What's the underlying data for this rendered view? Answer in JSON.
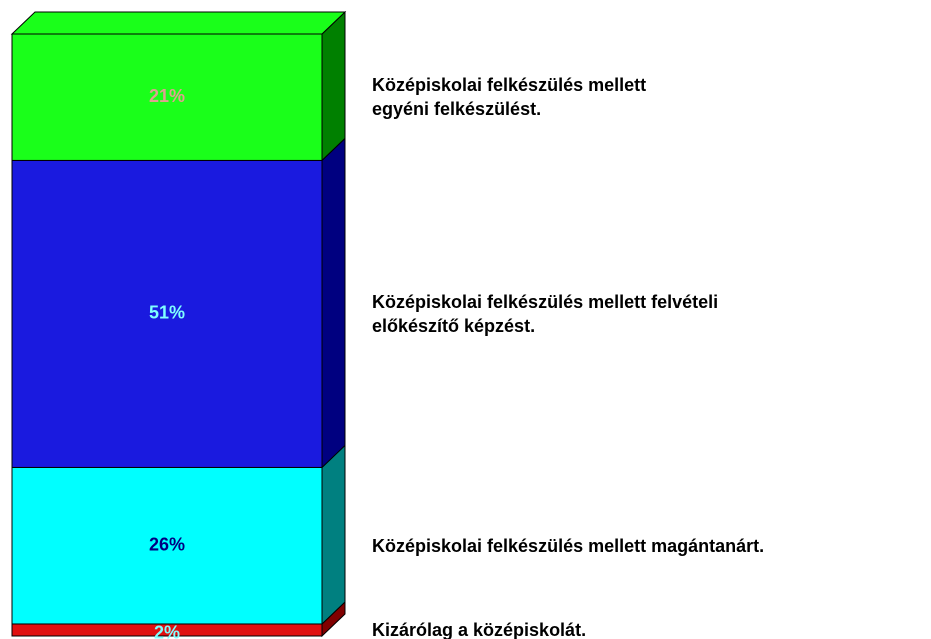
{
  "chart_data": {
    "type": "stacked_bar",
    "series": [
      {
        "name": "Kizárólag a középiskolát.",
        "color": "#e01010",
        "side_color": "#800000",
        "label_color": "#80ffff",
        "values": [
          2
        ],
        "value_labels": [
          "2%"
        ]
      },
      {
        "name": "Középiskolai felkészülés mellett magántanárt.",
        "color": "#00ffff",
        "side_color": "#008080",
        "label_color": "#000080",
        "values": [
          26
        ],
        "value_labels": [
          "26%"
        ]
      },
      {
        "name": "Középiskolai felkészülés mellett felvételi\nelőkészítő képzést.",
        "color": "#1a1adf",
        "side_color": "#000080",
        "label_color": "#80ffff",
        "values": [
          51
        ],
        "value_labels": [
          "51%"
        ]
      },
      {
        "name": "Középiskolai felkészülés mellett\negyéni felkészülést.",
        "color": "#1aff1a",
        "side_color": "#008000",
        "label_color": "#e0a090",
        "values": [
          21
        ],
        "value_labels": [
          "21%"
        ]
      }
    ],
    "ylim": [
      0,
      100
    ]
  }
}
